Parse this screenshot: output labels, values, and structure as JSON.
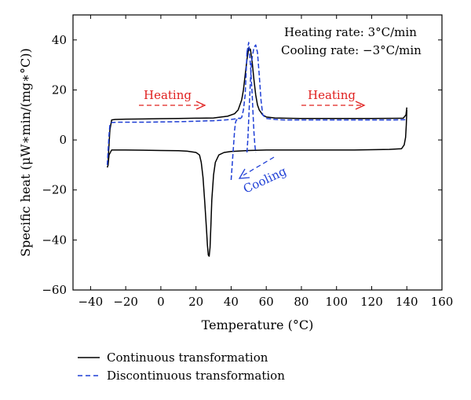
{
  "chart_data": {
    "type": "line",
    "xlabel": "Temperature (°C)",
    "ylabel": "Specific heat (μW∗min/(mg∗°C))",
    "xlim": [
      -50,
      160
    ],
    "ylim": [
      -60,
      50
    ],
    "x_ticks": [
      -40,
      -20,
      0,
      20,
      40,
      60,
      80,
      100,
      120,
      140,
      160
    ],
    "y_ticks": [
      -60,
      -40,
      -20,
      0,
      20,
      40
    ],
    "x_tick_labels": [
      "−40",
      "−20",
      "0",
      "20",
      "40",
      "60",
      "80",
      "100",
      "120",
      "140",
      "160"
    ],
    "y_tick_labels": [
      "−60",
      "−40",
      "−20",
      "0",
      "20",
      "40"
    ],
    "grid": false,
    "legend_position": "below-plot",
    "annotations": {
      "rate_heating": "Heating rate: 3°C/min",
      "rate_cooling": "Cooling rate: −3°C/min",
      "heating_left": "Heating",
      "heating_right": "Heating",
      "cooling": "Cooling"
    },
    "series": [
      {
        "name": "Continuous transformation",
        "color": "#000000",
        "style": "solid",
        "segments": [
          {
            "x": [
              -30,
              -29.5,
              -29,
              -28,
              -26,
              -20,
              -10,
              0,
              10,
              20,
              30,
              38,
              42,
              44,
              46,
              47,
              48,
              49,
              50,
              51,
              52,
              53,
              54,
              55,
              56,
              58,
              60,
              65,
              70,
              80,
              100,
              120,
              138,
              139.5,
              140
            ],
            "y": [
              -8,
              -2,
              4,
              8,
              8.2,
              8.3,
              8.4,
              8.5,
              8.6,
              8.7,
              8.8,
              9.5,
              10.5,
              12,
              16,
              20,
              26,
              32,
              36.8,
              36.2,
              31,
              24,
              18,
              14,
              12,
              10,
              9.2,
              8.8,
              8.7,
              8.6,
              8.6,
              8.6,
              8.7,
              10,
              13
            ]
          },
          {
            "x": [
              140,
              139.7,
              139.3,
              138.5,
              137,
              130,
              110,
              90,
              70,
              60,
              50,
              40,
              36,
              33,
              31,
              30,
              29,
              28.5,
              28,
              27.5,
              27,
              26.5,
              26,
              25,
              24,
              23,
              22,
              20,
              15,
              10,
              0,
              -10,
              -20,
              -28,
              -29.5,
              -30,
              -30.5
            ],
            "y": [
              12,
              6,
              1,
              -2,
              -3.5,
              -3.8,
              -4,
              -4,
              -4,
              -4,
              -4.2,
              -4.6,
              -5,
              -6,
              -9,
              -14,
              -24,
              -34,
              -43,
              -46.5,
              -46,
              -42,
              -36,
              -25,
              -15,
              -9,
              -6,
              -5,
              -4.5,
              -4.3,
              -4.2,
              -4.1,
              -4,
              -4,
              -6,
              -10,
              -11
            ]
          }
        ]
      },
      {
        "name": "Discontinuous transformation",
        "color": "#1f3fd6",
        "style": "dashed",
        "segments": [
          {
            "x": [
              -30.5,
              -30,
              -29.5,
              -29,
              -28,
              -25,
              -20,
              -10,
              0,
              10,
              20,
              30,
              35,
              40,
              42,
              44,
              45
            ],
            "y": [
              -10,
              -4,
              2,
              6,
              7,
              7.1,
              7.1,
              7.1,
              7.2,
              7.3,
              7.5,
              7.7,
              7.9,
              8.2,
              8.4,
              8.6,
              8.8
            ]
          },
          {
            "x": [
              40,
              41,
              42,
              42.5,
              43,
              44,
              45,
              46,
              47,
              48,
              48.5,
              49
            ],
            "y": [
              -16,
              -6,
              4,
              7,
              8,
              8.3,
              8.5,
              9,
              12,
              18,
              26,
              35
            ]
          },
          {
            "x": [
              49,
              50,
              51,
              52,
              52.5,
              53,
              53.5,
              54
            ],
            "y": [
              35,
              39,
              30,
              18,
              10,
              3,
              -2,
              -5
            ]
          },
          {
            "x": [
              49,
              49.5,
              50,
              50.5,
              51,
              51.5,
              52,
              53,
              54,
              55,
              56,
              57,
              58,
              60,
              65,
              70,
              80,
              100,
              120,
              130,
              140
            ],
            "y": [
              -5,
              0,
              8,
              16,
              24,
              30,
              33,
              37,
              38,
              35,
              26,
              16,
              10,
              8.6,
              8.2,
              8,
              8,
              8,
              8,
              8,
              8.1
            ]
          }
        ]
      }
    ]
  }
}
